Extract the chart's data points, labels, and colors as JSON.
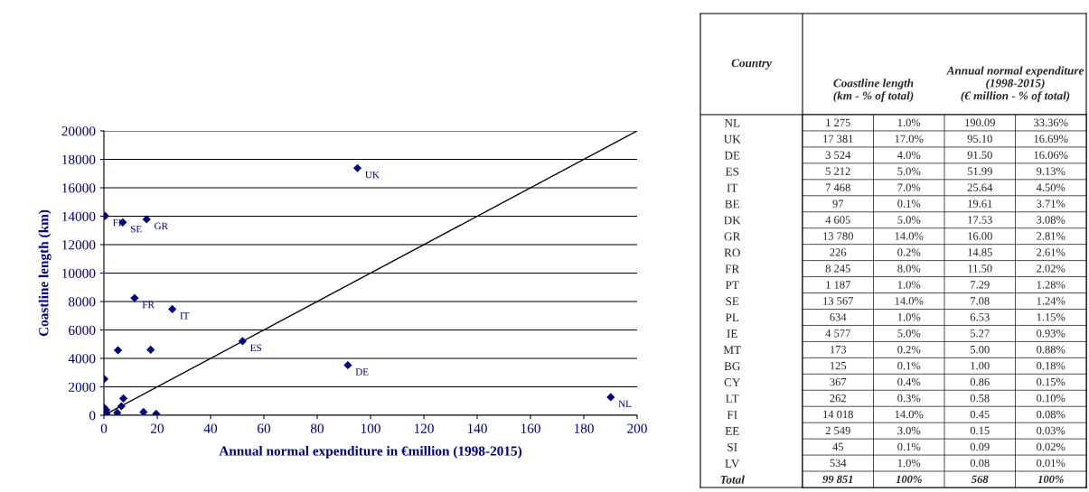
{
  "chart_data": [
    {
      "type": "scatter",
      "xlabel": "Annual normal expenditure in €million (1998-2015)",
      "ylabel": "Coastline length (km)",
      "xlim": [
        0,
        200
      ],
      "xticks": [
        0,
        20,
        40,
        60,
        80,
        100,
        120,
        140,
        160,
        180,
        200
      ],
      "ylim": [
        0,
        20000
      ],
      "yticks": [
        0,
        2000,
        4000,
        6000,
        8000,
        10000,
        12000,
        14000,
        16000,
        18000,
        20000
      ],
      "grid": "y",
      "legend": false,
      "marker": "diamond",
      "series": [
        {
          "type": "scatter",
          "color": "#000080",
          "x": [
            190.09,
            95.1,
            91.5,
            51.99,
            25.64,
            19.61,
            17.53,
            16.0,
            14.85,
            11.5,
            7.29,
            7.08,
            6.53,
            5.27,
            5.0,
            1.0,
            0.86,
            0.58,
            0.45,
            0.15,
            0.09,
            0.08
          ],
          "values": [
            1275,
            17381,
            3524,
            5212,
            7468,
            97,
            4605,
            13780,
            226,
            8245,
            1187,
            13567,
            634,
            4577,
            173,
            125,
            367,
            null,
            14018,
            2549,
            null,
            534
          ]
        },
        {
          "type": "line",
          "color": "#000000",
          "marker": "none",
          "x": [
            0,
            200
          ],
          "values": [
            0,
            20000
          ]
        }
      ],
      "annotations": [
        {
          "text": "UK",
          "x": 95.1,
          "y": 17381
        },
        {
          "text": "FI",
          "x": 0.45,
          "y": 14018
        },
        {
          "text": "SE",
          "x": 7.08,
          "y": 13567
        },
        {
          "text": "GR",
          "x": 16.0,
          "y": 13780
        },
        {
          "text": "FR",
          "x": 11.5,
          "y": 8245
        },
        {
          "text": "IT",
          "x": 25.64,
          "y": 7468
        },
        {
          "text": "ES",
          "x": 51.99,
          "y": 5212
        },
        {
          "text": "DE",
          "x": 91.5,
          "y": 3524
        },
        {
          "text": "NL",
          "x": 190.09,
          "y": 1275
        }
      ]
    },
    {
      "type": "other",
      "ylabel": "Country",
      "categories": [
        "Coastline length\n(km - % of total)",
        null,
        "Annual normal expenditure\n(1998-2015)\n(€ million - % of total)",
        null
      ],
      "y_categories": [
        "NL",
        "UK",
        "DE",
        "ES",
        "IT",
        "BE",
        "DK",
        "GR",
        "RO",
        "FR",
        "PT",
        "SE",
        "PL",
        "IE",
        "MT",
        "BG",
        "CY",
        "LT",
        "FI",
        "EE",
        "SI",
        "LV",
        "Total"
      ],
      "cell_labels": [
        [
          "1 275",
          "1.0%",
          "190.09",
          "33.36%"
        ],
        [
          "17 381",
          "17.0%",
          "95.10",
          "16.69%"
        ],
        [
          "3 524",
          "4.0%",
          "91.50",
          "16.06%"
        ],
        [
          "5 212",
          "5.0%",
          "51.99",
          "9.13%"
        ],
        [
          "7 468",
          "7.0%",
          "25.64",
          "4.50%"
        ],
        [
          "97",
          "0.1%",
          "19.61",
          "3.71%"
        ],
        [
          "4 605",
          "5.0%",
          "17.53",
          "3.08%"
        ],
        [
          "13 780",
          "14.0%",
          "16.00",
          "2.81%"
        ],
        [
          "226",
          "0.2%",
          "14.85",
          "2.61%"
        ],
        [
          "8 245",
          "8.0%",
          "11.50",
          "2.02%"
        ],
        [
          "1 187",
          "1.0%",
          "7.29",
          "1.28%"
        ],
        [
          "13 567",
          "14.0%",
          "7.08",
          "1.24%"
        ],
        [
          "634",
          "1.0%",
          "6.53",
          "1.15%"
        ],
        [
          "4 577",
          "5.0%",
          "5.27",
          "0.93%"
        ],
        [
          "173",
          "0.2%",
          "5.00",
          "0.88%"
        ],
        [
          "125",
          "0.1%",
          "1.00",
          "0.18%"
        ],
        [
          "367",
          "0.4%",
          "0.86",
          "0.15%"
        ],
        [
          "262",
          "0.3%",
          "0.58",
          "0.10%"
        ],
        [
          "14 018",
          "14.0%",
          "0.45",
          "0.08%"
        ],
        [
          "2 549",
          "3.0%",
          "0.15",
          "0.03%"
        ],
        [
          "45",
          "0.1%",
          "0.09",
          "0.02%"
        ],
        [
          "534",
          "1.0%",
          "0.08",
          "0.01%"
        ],
        [
          "99 851",
          "100%",
          "568",
          "100%"
        ]
      ]
    }
  ]
}
